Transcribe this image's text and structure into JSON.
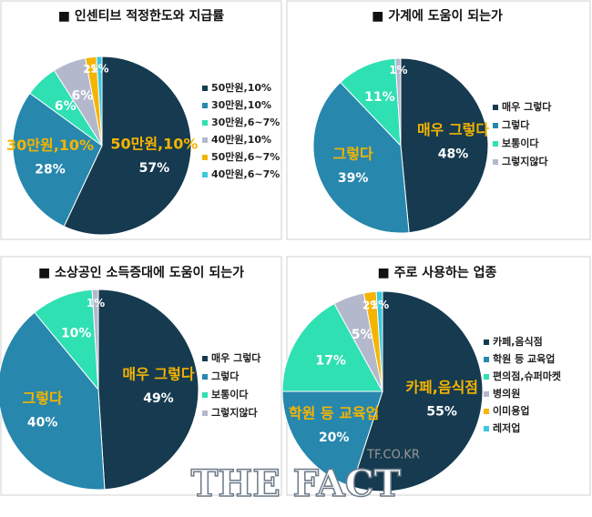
{
  "chart_data": [
    {
      "type": "pie",
      "title": "■ 인센티브 적정한도와 지급률",
      "categories": [
        "50만원,10%",
        "30만원,10%",
        "30만원,6~7%",
        "40만원,10%",
        "50만원,6~7%",
        "40만원,6~7%"
      ],
      "values": [
        57,
        28,
        6,
        6,
        2,
        1
      ],
      "value_labels": [
        "57%",
        "28%",
        "6%",
        "6%",
        "2%",
        "1%"
      ],
      "colors": [
        "#163a4f",
        "#2787ad",
        "#2fe0b2",
        "#b3b8cc",
        "#f5b400",
        "#3cc8e0"
      ]
    },
    {
      "type": "pie",
      "title": "■ 가계에 도움이 되는가",
      "categories": [
        "매우 그렇다",
        "그렇다",
        "보통이다",
        "그렇지않다"
      ],
      "values": [
        48,
        39,
        11,
        1
      ],
      "value_labels": [
        "48%",
        "39%",
        "11%",
        "1%"
      ],
      "colors": [
        "#163a4f",
        "#2787ad",
        "#2fe0b2",
        "#b3b8cc"
      ]
    },
    {
      "type": "pie",
      "title": "■ 소상공인 소득증대에 도움이 되는가",
      "categories": [
        "매우 그렇다",
        "그렇다",
        "보통이다",
        "그렇지않다"
      ],
      "values": [
        49,
        40,
        10,
        1
      ],
      "value_labels": [
        "49%",
        "40%",
        "10%",
        "1%"
      ],
      "colors": [
        "#163a4f",
        "#2787ad",
        "#2fe0b2",
        "#b3b8cc"
      ]
    },
    {
      "type": "pie",
      "title": "■ 주로 사용하는 업종",
      "categories": [
        "카페,음식점",
        "학원 등 교육업",
        "편의점,슈퍼마켓",
        "병의원",
        "이미용업",
        "레저업"
      ],
      "values": [
        55,
        20,
        17,
        5,
        2,
        1
      ],
      "value_labels": [
        "55%",
        "20%",
        "17%",
        "5%",
        "2%",
        "1%"
      ],
      "colors": [
        "#163a4f",
        "#2787ad",
        "#2fe0b2",
        "#b3b8cc",
        "#f5b400",
        "#3cc8e0"
      ]
    }
  ],
  "watermark": [
    "TF.CO.KR",
    "THE FACT"
  ]
}
